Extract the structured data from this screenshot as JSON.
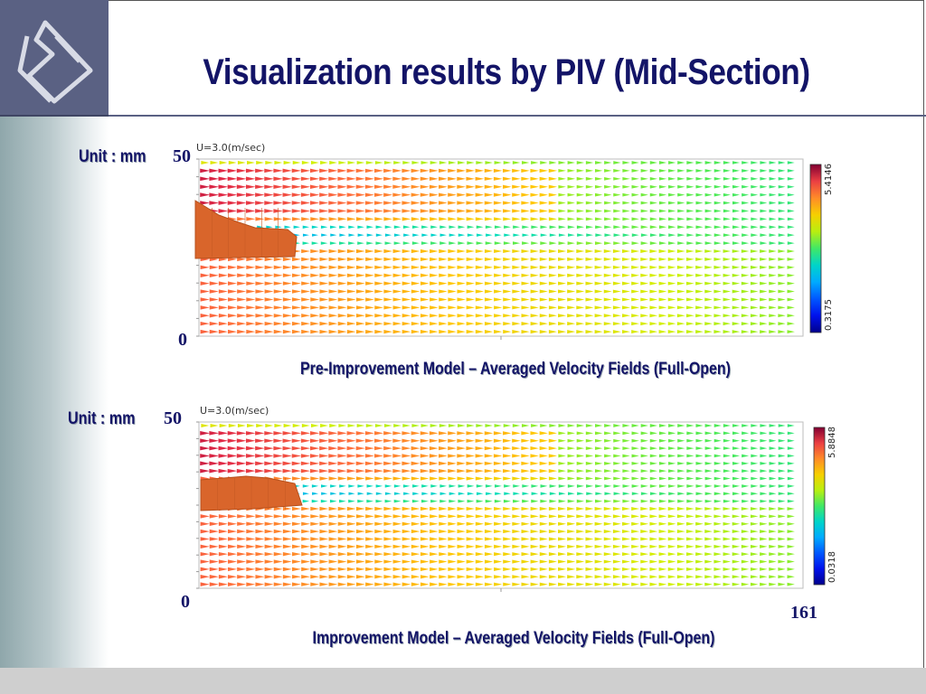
{
  "slide": {
    "title": "Visualization results by PIV (Mid-Section)"
  },
  "panels": [
    {
      "unit_label": "Unit : mm",
      "y_max_label": "50",
      "y_min_label": "0",
      "reference_vector_label": "U=3.0(m/sec)",
      "colorbar_max": "5.4146",
      "colorbar_min": "0.3175",
      "caption": "Pre-Improvement Model – Averaged Velocity Fields (Full-Open)"
    },
    {
      "unit_label": "Unit : mm",
      "y_max_label": "50",
      "y_min_label": "0",
      "x_max_label": "161",
      "reference_vector_label": "U=3.0(m/sec)",
      "colorbar_max": "5.8848",
      "colorbar_min": "0.0318",
      "caption": "Improvement Model – Averaged Velocity Fields (Full-Open)"
    }
  ],
  "colors": {
    "title": "#131467",
    "obstacle": "#d9652b",
    "logo_background": "#5a6183"
  }
}
